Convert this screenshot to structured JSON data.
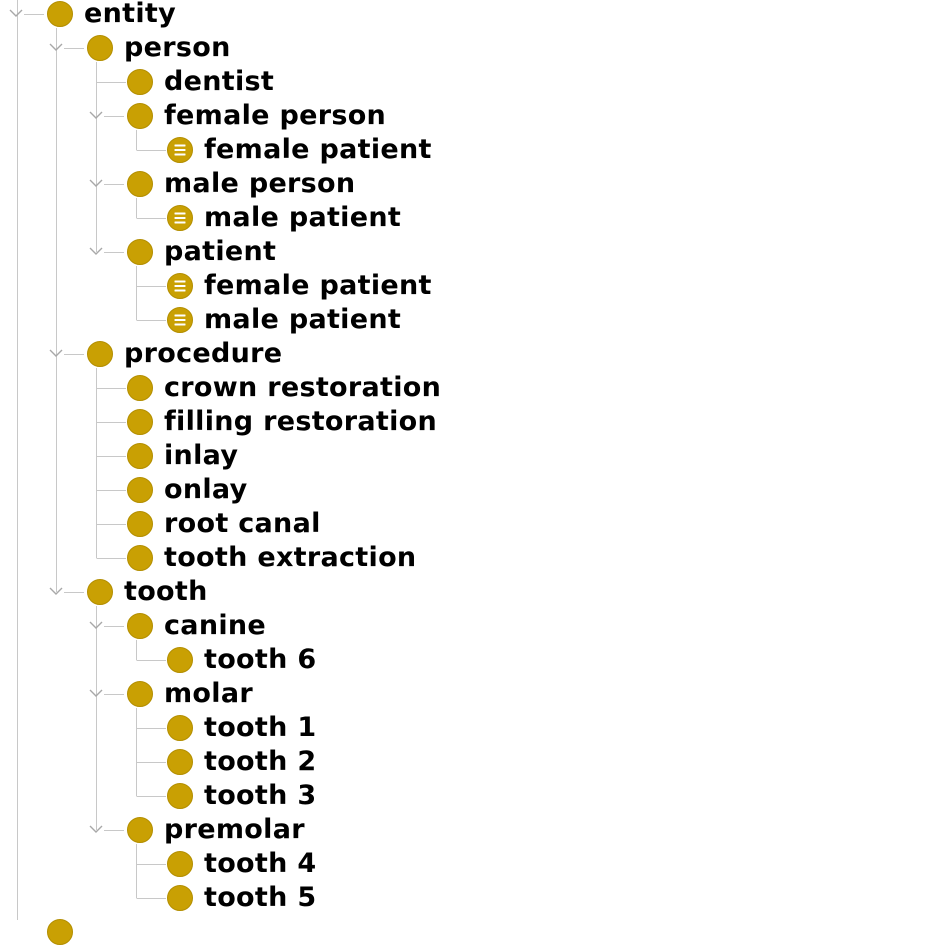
{
  "colors": {
    "class_fill": "#c9a003",
    "class_outline": "#b38e00",
    "equiv_lines": "#ffffff",
    "tree_lines": "#c8c8c8",
    "toggle_chevron": "#a8a8a8",
    "label_text": "#000000"
  },
  "icons": {
    "primitive_class": "class-circle-icon",
    "defined_class": "defined-class-icon",
    "expand": "chevron-down-icon"
  },
  "tree": [
    {
      "label": "entity",
      "depth": 0,
      "expanded": true,
      "defined": false
    },
    {
      "label": "person",
      "depth": 1,
      "expanded": true,
      "defined": false
    },
    {
      "label": "dentist",
      "depth": 2,
      "expanded": false,
      "defined": false
    },
    {
      "label": "female person",
      "depth": 2,
      "expanded": true,
      "defined": false
    },
    {
      "label": "female patient",
      "depth": 3,
      "expanded": false,
      "defined": true
    },
    {
      "label": "male person",
      "depth": 2,
      "expanded": true,
      "defined": false
    },
    {
      "label": "male patient",
      "depth": 3,
      "expanded": false,
      "defined": true
    },
    {
      "label": "patient",
      "depth": 2,
      "expanded": true,
      "defined": false
    },
    {
      "label": "female patient",
      "depth": 3,
      "expanded": false,
      "defined": true
    },
    {
      "label": "male patient",
      "depth": 3,
      "expanded": false,
      "defined": true
    },
    {
      "label": "procedure",
      "depth": 1,
      "expanded": true,
      "defined": false
    },
    {
      "label": "crown restoration",
      "depth": 2,
      "expanded": false,
      "defined": false
    },
    {
      "label": "filling restoration",
      "depth": 2,
      "expanded": false,
      "defined": false
    },
    {
      "label": "inlay",
      "depth": 2,
      "expanded": false,
      "defined": false
    },
    {
      "label": "onlay",
      "depth": 2,
      "expanded": false,
      "defined": false
    },
    {
      "label": "root canal",
      "depth": 2,
      "expanded": false,
      "defined": false
    },
    {
      "label": "tooth extraction",
      "depth": 2,
      "expanded": false,
      "defined": false
    },
    {
      "label": "tooth",
      "depth": 1,
      "expanded": true,
      "defined": false
    },
    {
      "label": "canine",
      "depth": 2,
      "expanded": true,
      "defined": false
    },
    {
      "label": "tooth 6",
      "depth": 3,
      "expanded": false,
      "defined": false
    },
    {
      "label": "molar",
      "depth": 2,
      "expanded": true,
      "defined": false
    },
    {
      "label": "tooth 1",
      "depth": 3,
      "expanded": false,
      "defined": false
    },
    {
      "label": "tooth 2",
      "depth": 3,
      "expanded": false,
      "defined": false
    },
    {
      "label": "tooth 3",
      "depth": 3,
      "expanded": false,
      "defined": false
    },
    {
      "label": "premolar",
      "depth": 2,
      "expanded": true,
      "defined": false
    },
    {
      "label": "tooth 4",
      "depth": 3,
      "expanded": false,
      "defined": false
    },
    {
      "label": "tooth 5",
      "depth": 3,
      "expanded": false,
      "defined": false
    },
    {
      "label": "",
      "depth": 0,
      "expanded": false,
      "defined": false
    }
  ]
}
